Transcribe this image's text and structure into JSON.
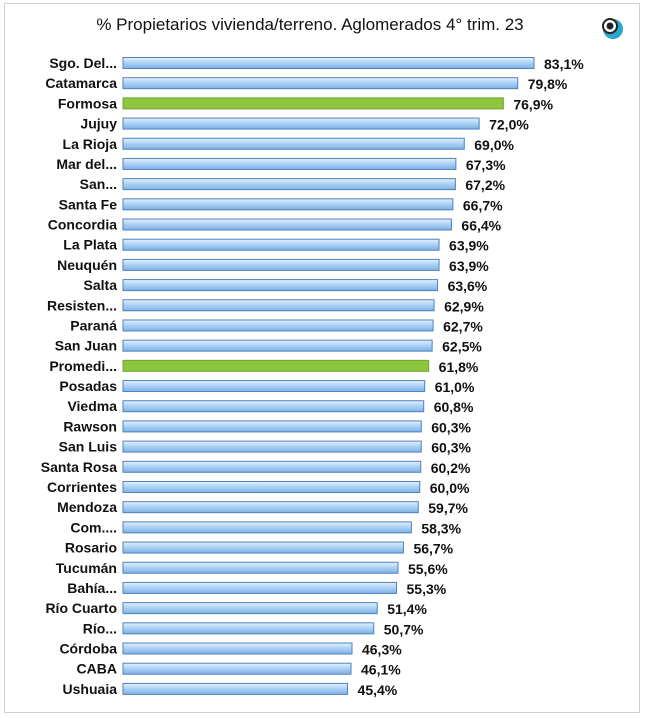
{
  "chart_data": {
    "type": "bar",
    "orientation": "horizontal",
    "title": "% Propietarios vivienda/terreno.  Aglomerados  4° trim. 23",
    "categories": [
      "Sgo. Del...",
      "Catamarca",
      "Formosa",
      "Jujuy",
      "La Rioja",
      "Mar del...",
      "San...",
      "Santa Fe",
      "Concordia",
      "La Plata",
      "Neuquén",
      "Salta",
      "Resisten...",
      "Paraná",
      "San Juan",
      "Promedi...",
      "Posadas",
      "Viedma",
      "Rawson",
      "San Luis",
      "Santa Rosa",
      "Corrientes",
      "Mendoza",
      "Com....",
      "Rosario",
      "Tucumán",
      "Bahía...",
      "Río Cuarto",
      "Río...",
      "Córdoba",
      "CABA",
      "Ushuaia"
    ],
    "values": [
      83.1,
      79.8,
      76.9,
      72.0,
      69.0,
      67.3,
      67.2,
      66.7,
      66.4,
      63.9,
      63.9,
      63.6,
      62.9,
      62.7,
      62.5,
      61.8,
      61.0,
      60.8,
      60.3,
      60.3,
      60.2,
      60.0,
      59.7,
      58.3,
      56.7,
      55.6,
      55.3,
      51.4,
      50.7,
      46.3,
      46.1,
      45.4
    ],
    "labels": [
      "83,1%",
      "79,8%",
      "76,9%",
      "72,0%",
      "69,0%",
      "67,3%",
      "67,2%",
      "66,7%",
      "66,4%",
      "63,9%",
      "63,9%",
      "63,6%",
      "62,9%",
      "62,7%",
      "62,5%",
      "61,8%",
      "61,0%",
      "60,8%",
      "60,3%",
      "60,3%",
      "60,2%",
      "60,0%",
      "59,7%",
      "58,3%",
      "56,7%",
      "55,6%",
      "55,3%",
      "51,4%",
      "50,7%",
      "46,3%",
      "46,1%",
      "45,4%"
    ],
    "highlighted": [
      "Formosa",
      "Promedi..."
    ],
    "xlim": [
      0,
      100
    ],
    "grid": false,
    "legend": "none",
    "colors": {
      "bar": "#a9d0f5",
      "bar_edge": "#4f81bd",
      "highlight": "#8cc63f"
    }
  },
  "logo": {
    "icon": "eye-logo-icon",
    "color": "#2aa7c9"
  }
}
